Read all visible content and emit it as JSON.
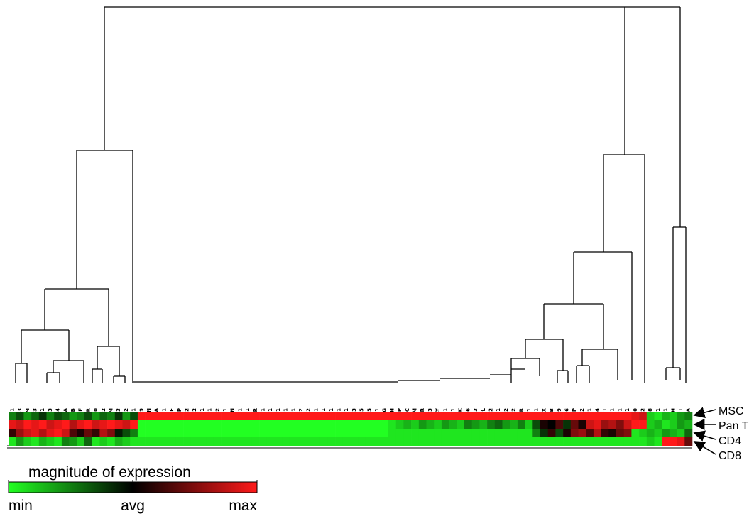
{
  "chart_data": {
    "type": "heatmap",
    "x": [
      "SCARB1",
      "CSF3",
      "B2M",
      "TGFB3",
      "COL2A1",
      "SMAD3",
      "SMAD4",
      "RPL13A",
      "VEGFB",
      "TNF",
      "IGF1R",
      "GDF10",
      "SMAD2",
      "ITGAM",
      "COL4A3",
      "RUNX2",
      "TGFBR1",
      "SOX9",
      "AMBN",
      "PDGFA",
      "MSX1",
      "EGF",
      "COMP",
      "TGFB2",
      "MMP2",
      "FN1",
      "COL12A1",
      "COL1A2",
      "COL11A1",
      "BGN",
      "FGF1",
      "COL10A1",
      "EGFR",
      "COL5A1",
      "COL4A1",
      "TWIST1",
      "VCAM1",
      "SMAD1",
      "FGF2",
      "BMP2",
      "COL3A1",
      "BMP1",
      "NFKB1",
      "IGF1",
      "CDH11",
      "ITGA3",
      "BMP5",
      "ANXA5",
      "COL15A1",
      "AHSG",
      "GAPDH",
      "DSPP",
      "HDAC",
      "ENAM",
      "CALCR",
      "BMP3",
      "AMELY",
      "ITGA1",
      "FGFR1",
      "CTSK",
      "CD36",
      "FGF3",
      "ALPL",
      "CSF2",
      "ITGB1",
      "FGFR2",
      "IGF2",
      "VDR",
      "TUFT1",
      "SERPINH1",
      "PHEX",
      "ACTB",
      "MMP9",
      "BMP6",
      "BGLAP",
      "ITGA2",
      "FLT1",
      "BMP4",
      "MINPP1",
      "ICAM1",
      "TGFB1",
      "COL1A1",
      "MMP10",
      "TGFBR2",
      "MMP8",
      "HPRT1",
      "TFIP11",
      "STATH",
      "DMP1",
      "VEGFA"
    ],
    "y": [
      "MSC",
      "Pan T",
      "CD4",
      "CD8"
    ],
    "values": [
      [
        -0.5,
        -0.3,
        -0.6,
        -0.4,
        -0.2,
        -0.5,
        -0.3,
        -0.4,
        -0.6,
        -0.5,
        -0.3,
        -0.6,
        -0.4,
        -0.5,
        -0.2,
        -0.6,
        -0.3,
        1,
        1,
        1,
        1,
        1,
        1,
        1,
        1,
        1,
        1,
        1,
        1,
        1,
        1,
        1,
        1,
        1,
        1,
        1,
        1,
        1,
        1,
        1,
        1,
        1,
        1,
        1,
        1,
        1,
        1,
        1,
        1,
        1,
        1,
        1,
        1,
        1,
        1,
        1,
        1,
        1,
        1,
        1,
        1,
        1,
        1,
        1,
        1,
        1,
        1,
        1,
        1,
        1,
        1,
        1,
        1,
        1,
        1,
        1,
        1,
        1,
        1,
        1,
        1,
        1,
        0.9,
        0.8,
        -0.8,
        -0.9,
        -0.7,
        -0.8,
        -0.6,
        -0.5
      ],
      [
        0.9,
        0.8,
        1,
        0.9,
        1,
        0.8,
        0.9,
        1,
        0.7,
        0.9,
        1,
        0.8,
        0.9,
        1,
        0.9,
        0.8,
        1,
        -1,
        -1,
        -1,
        -1,
        -1,
        -1,
        -1,
        -1,
        -1,
        -1,
        -1,
        -1,
        -1,
        -1,
        -1,
        -1,
        -1,
        -1,
        -1,
        -1,
        -1,
        -1,
        -1,
        -1,
        -1,
        -1,
        -1,
        -1,
        -1,
        -1,
        -1,
        -1,
        -1,
        -0.9,
        -0.8,
        -0.7,
        -0.8,
        -0.6,
        -0.7,
        -0.8,
        -0.6,
        -0.7,
        -0.8,
        -0.5,
        -0.6,
        -0.7,
        -0.5,
        -0.4,
        -0.6,
        -0.7,
        -0.5,
        -0.8,
        -0.3,
        0.1,
        0,
        0.3,
        -0.2,
        0.4,
        0.1,
        0.8,
        0.9,
        0.6,
        0.7,
        0.5,
        0.8,
        1,
        1,
        -0.8,
        -0.7,
        -0.9,
        -0.8,
        -0.6,
        -0.7
      ],
      [
        0.2,
        0.6,
        0.8,
        0.9,
        0.7,
        0.9,
        1,
        0.8,
        0.3,
        0.1,
        0.4,
        0.2,
        0.7,
        0.5,
        -0.1,
        -0.3,
        -0.5,
        -1,
        -1,
        -1,
        -1,
        -1,
        -1,
        -1,
        -1,
        -1,
        -1,
        -1,
        -1,
        -1,
        -1,
        -1,
        -1,
        -1,
        -1,
        -1,
        -1,
        -1,
        -1,
        -1,
        -1,
        -1,
        -1,
        -1,
        -1,
        -1,
        -1,
        -1,
        -1,
        -1,
        -0.9,
        -0.9,
        -0.9,
        -0.9,
        -0.9,
        -0.9,
        -0.9,
        -0.9,
        -0.9,
        -0.9,
        -0.9,
        -0.9,
        -0.9,
        -0.9,
        -0.9,
        -0.9,
        -0.9,
        -0.9,
        -0.9,
        -0.5,
        -0.2,
        0.2,
        -0.3,
        0.1,
        0.5,
        0.6,
        0.3,
        0.7,
        0.2,
        0.1,
        0.4,
        0.5,
        -0.9,
        -0.8,
        -0.7,
        -0.8,
        -0.6,
        -0.7,
        -0.8,
        -0.4
      ],
      [
        -0.9,
        -0.6,
        -0.8,
        -0.9,
        -0.7,
        -0.8,
        -0.9,
        -0.5,
        -0.6,
        -0.8,
        -0.4,
        -0.9,
        -0.8,
        -0.9,
        -0.7,
        -0.8,
        -0.9,
        -0.9,
        -0.9,
        -0.9,
        -0.9,
        -0.9,
        -0.9,
        -0.9,
        -0.9,
        -0.9,
        -0.9,
        -0.9,
        -0.9,
        -0.9,
        -0.9,
        -0.9,
        -0.9,
        -0.9,
        -0.9,
        -0.9,
        -0.9,
        -0.9,
        -0.9,
        -0.9,
        -0.9,
        -0.9,
        -0.9,
        -0.9,
        -0.9,
        -0.9,
        -0.9,
        -0.9,
        -0.9,
        -0.9,
        -0.9,
        -0.9,
        -0.9,
        -0.9,
        -0.9,
        -0.9,
        -0.9,
        -0.9,
        -0.9,
        -0.9,
        -0.9,
        -0.9,
        -0.9,
        -0.9,
        -0.9,
        -0.9,
        -0.9,
        -0.9,
        -0.9,
        -0.9,
        -0.9,
        -0.9,
        -0.9,
        -0.9,
        -0.9,
        -0.9,
        -0.9,
        -0.9,
        -0.9,
        -0.9,
        -0.9,
        -0.9,
        -0.9,
        -0.9,
        -0.8,
        -0.9,
        1,
        1,
        0.9,
        0.4
      ]
    ],
    "colorbar": {
      "title": "magnitude of expression",
      "lim": [
        -1,
        1
      ],
      "colors": [
        "#22ff22",
        "#000000",
        "#ff1a1a"
      ],
      "ticks": [
        {
          "value": -1,
          "label": "min"
        },
        {
          "value": 0,
          "label": "avg"
        },
        {
          "value": 1,
          "label": "max"
        }
      ]
    }
  }
}
